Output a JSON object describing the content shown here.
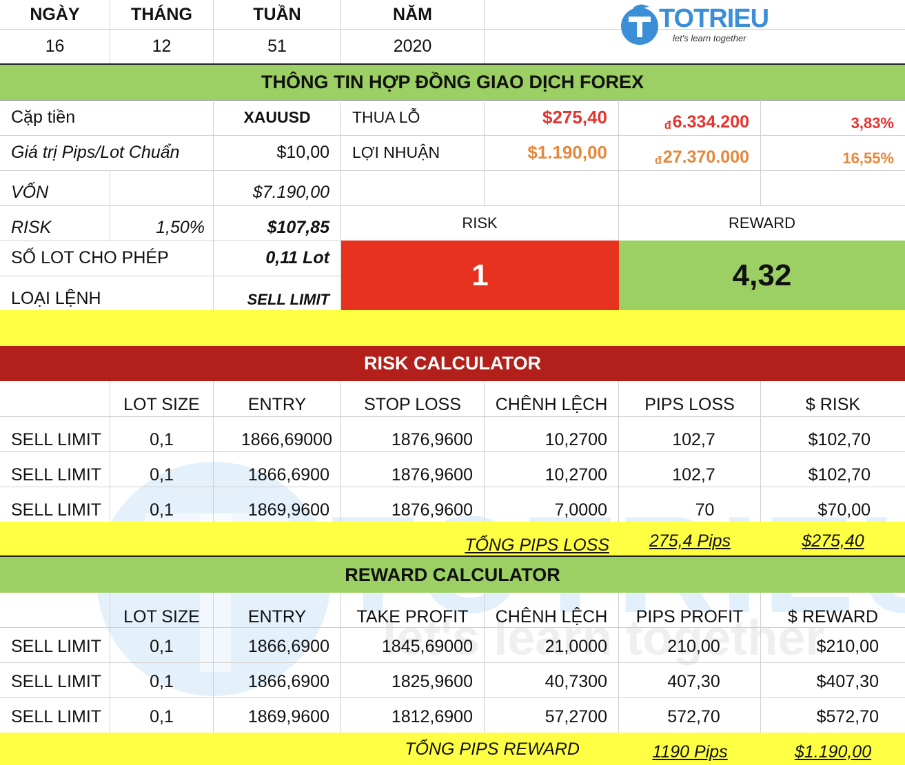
{
  "header": {
    "labels": [
      "NGÀY",
      "THÁNG",
      "TUẦN",
      "NĂM"
    ],
    "values": [
      "16",
      "12",
      "51",
      "2020"
    ]
  },
  "logo": {
    "word": "TOTRIEU",
    "tagline": "let's learn together"
  },
  "contract": {
    "title": "THÔNG TIN HỢP ĐỒNG GIAO DỊCH FOREX",
    "pair_label": "Cặp tiền",
    "pair_value": "XAUUSD",
    "pip_label": "Giá trị Pips/Lot Chuẩn",
    "pip_value": "$10,00",
    "loss_label": "THUA LỖ",
    "loss_usd": "$275,40",
    "loss_vnd_symbol": "đ",
    "loss_vnd": "6.334.200",
    "loss_pct": "3,83%",
    "profit_label": "LỢI NHUẬN",
    "profit_usd": "$1.190,00",
    "profit_vnd_symbol": "đ",
    "profit_vnd": "27.370.000",
    "profit_pct": "16,55%",
    "capital_label": "VỐN",
    "capital_value": "$7.190,00",
    "risk_label": "RISK",
    "risk_pct": "1,50%",
    "risk_value": "$107,85",
    "lot_label": "SỐ LOT CHO PHÉP",
    "lot_value": "0,11 Lot",
    "order_label": "LOẠI LỆNH",
    "order_value": "SELL LIMIT",
    "rr_risk_label": "RISK",
    "rr_reward_label": "REWARD",
    "rr_risk_value": "1",
    "rr_reward_value": "4,32"
  },
  "risk_calc": {
    "title": "RISK CALCULATOR",
    "headers": [
      "",
      "LOT SIZE",
      "ENTRY",
      "STOP LOSS",
      "CHÊNH LỆCH",
      "PIPS LOSS",
      "$ RISK"
    ],
    "rows": [
      [
        "SELL LIMIT",
        "0,1",
        "1866,69000",
        "1876,9600",
        "10,2700",
        "102,7",
        "$102,70"
      ],
      [
        "SELL LIMIT",
        "0,1",
        "1866,6900",
        "1876,9600",
        "10,2700",
        "102,7",
        "$102,70"
      ],
      [
        "SELL LIMIT",
        "0,1",
        "1869,9600",
        "1876,9600",
        "7,0000",
        "70",
        "$70,00"
      ]
    ],
    "total_label": "TỔNG PIPS LOSS",
    "total_pips": "275,4 Pips",
    "total_usd": "$275,40"
  },
  "reward_calc": {
    "title": "REWARD CALCULATOR",
    "headers": [
      "",
      "LOT SIZE",
      "ENTRY",
      "TAKE PROFIT",
      "CHÊNH LỆCH",
      "PIPS PROFIT",
      "$ REWARD"
    ],
    "rows": [
      [
        "SELL LIMIT",
        "0,1",
        "1866,6900",
        "1845,69000",
        "21,0000",
        "210,00",
        "$210,00"
      ],
      [
        "SELL LIMIT",
        "0,1",
        "1866,6900",
        "1825,9600",
        "40,7300",
        "407,30",
        "$407,30"
      ],
      [
        "SELL LIMIT",
        "0,1",
        "1869,9600",
        "1812,6900",
        "57,2700",
        "572,70",
        "$572,70"
      ]
    ],
    "total_label": "TỔNG PIPS REWARD",
    "total_pips": "1190 Pips",
    "total_usd": "$1.190,00"
  },
  "colors": {
    "green": "#9ccf64",
    "dark_red": "#b31f1a",
    "red": "#e7321f",
    "yellow": "#ffff44",
    "logo_blue": "#3a8fd6"
  }
}
